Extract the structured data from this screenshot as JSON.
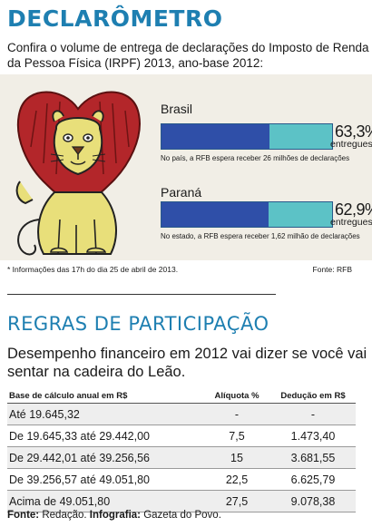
{
  "title": "DECLARÔMETRO",
  "subtitle": "Confira o volume de entrega de declarações do Imposto de Renda da Pessoa Física (IRPF) 2013, ano-base 2012:",
  "regions": [
    {
      "name": "Brasil",
      "percent_label": "63,3%",
      "unit": "entregues",
      "fraction": 0.633,
      "note": "No país, a RFB espera receber 26 milhões de declarações"
    },
    {
      "name": "Paraná",
      "percent_label": "62,9%",
      "unit": "entregues",
      "fraction": 0.629,
      "note": "No estado, a RFB espera receber 1,62 milhão de declarações"
    }
  ],
  "footnote": "* Informações das 17h do dia 25 de abril de 2013.",
  "source": "Fonte: RFB",
  "section_title": "REGRAS DE PARTICIPAÇÃO",
  "intro": "Desempenho financeiro em 2012 vai dizer se você vai sentar na cadeira do Leão.",
  "table": {
    "headers": [
      "Base de cálculo anual em R$",
      "Alíquota %",
      "Dedução em R$"
    ],
    "rows": [
      [
        "Até 19.645,32",
        "-",
        "-"
      ],
      [
        "De 19.645,33 até 29.442,00",
        "7,5",
        "1.473,40"
      ],
      [
        "De 29.442,01 até 39.256,56",
        "15",
        "3.681,55"
      ],
      [
        "De 39.256,57 até 49.051,80",
        "22,5",
        "6.625,79"
      ],
      [
        "Acima de 49.051,80",
        "27,5",
        "9.078,38"
      ]
    ]
  },
  "credits": {
    "source_label": "Fonte:",
    "source_value": "Redação.",
    "infographic_label": "Infografia:",
    "infographic_value": "Gazeta do Povo."
  },
  "colors": {
    "accent": "#1e7fb1",
    "bar_filled": "#2f4fa8",
    "bar_remaining": "#5cc2c6",
    "lion_mane": "#b3262a",
    "lion_body": "#e8df7a"
  },
  "illustration": "lion-illustration"
}
